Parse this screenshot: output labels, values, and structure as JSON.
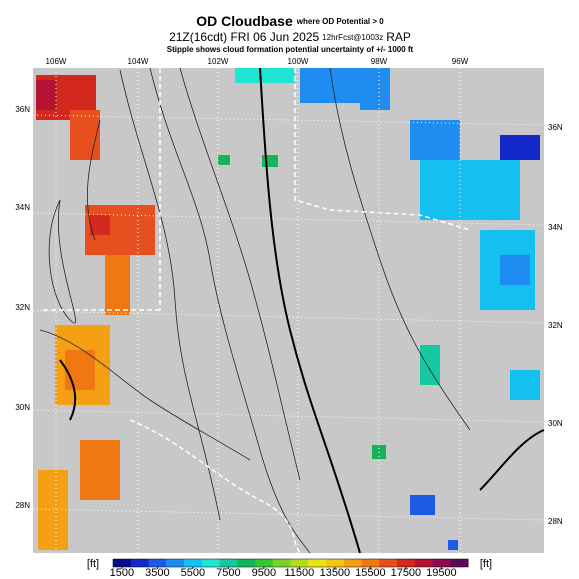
{
  "header": {
    "title": "OD Cloudbase",
    "title_note": "where OD Potential > 0",
    "valid": "21Z(16cdt) FRI 06 Jun 2025",
    "forecast": "12hrFcst@1003z",
    "model": "RAP",
    "subtitle": "Stipple shows cloud formation potential uncertainty of +/- 1000 ft"
  },
  "map": {
    "lon_labels": [
      "106W",
      "104W",
      "102W",
      "100W",
      "98W",
      "96W"
    ],
    "lat_labels_left": [
      "36N",
      "34N",
      "32N",
      "30N",
      "28N"
    ],
    "lat_labels_right": [
      "36N",
      "34N",
      "32N",
      "30N",
      "28N"
    ]
  },
  "colorbar": {
    "unit_left": "[ft]",
    "unit_right": "[ft]",
    "range": [
      1000,
      21000
    ],
    "ticks": [
      1500,
      3500,
      5500,
      7500,
      9500,
      11500,
      13500,
      15500,
      17500,
      19500
    ],
    "colors": [
      "#0a0a8c",
      "#1428c8",
      "#1e5ae6",
      "#1e8cf0",
      "#14c0f0",
      "#1ee6d2",
      "#14c8a0",
      "#14b45a",
      "#32c832",
      "#78d228",
      "#b4dc1e",
      "#e6e614",
      "#f0c814",
      "#f5a014",
      "#f07814",
      "#e6501e",
      "#d2281e",
      "#b41432",
      "#8c0a50",
      "#5a0a5a"
    ]
  }
}
